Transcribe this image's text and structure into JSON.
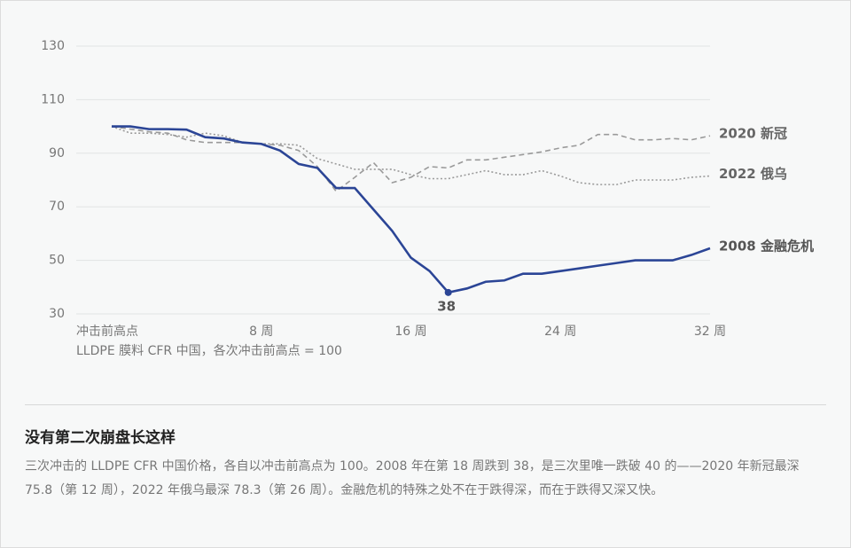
{
  "chart_data": {
    "type": "line",
    "subtitle": "LLDPE 膜料 CFR 中国，各次冲击前高点 = 100",
    "x": [
      0,
      1,
      2,
      3,
      4,
      5,
      6,
      7,
      8,
      9,
      10,
      11,
      12,
      13,
      14,
      15,
      16,
      17,
      18,
      19,
      20,
      21,
      22,
      23,
      24,
      25,
      26,
      27,
      28,
      29,
      30,
      31,
      32
    ],
    "xlim": [
      0,
      32
    ],
    "xticks": [
      {
        "value": 0,
        "label": "冲击前高点"
      },
      {
        "value": 8,
        "label": "8 周"
      },
      {
        "value": 16,
        "label": "16 周"
      },
      {
        "value": 24,
        "label": "24 周"
      },
      {
        "value": 32,
        "label": "32 周"
      }
    ],
    "ylim": [
      30,
      130
    ],
    "yticks": [
      30,
      50,
      70,
      90,
      110,
      130
    ],
    "grid": true,
    "series": [
      {
        "name": "2008 金融危机",
        "color": "#2b4596",
        "dash": "solid",
        "values": [
          100,
          100,
          99,
          99,
          98.8,
          96,
          95.5,
          94,
          93.5,
          91,
          86,
          84.5,
          77,
          77,
          69,
          61,
          51,
          46,
          38,
          39.5,
          42,
          42.5,
          45,
          45,
          46,
          47,
          48,
          49,
          50,
          50,
          50,
          52,
          54.5
        ]
      },
      {
        "name": "2020 新冠",
        "color": "#9a9a9a",
        "dash": "dashed",
        "values": [
          100,
          99,
          98,
          97.5,
          95,
          94,
          94,
          94,
          93.5,
          93,
          91,
          85,
          75.8,
          81,
          86.5,
          79,
          81,
          85,
          84.5,
          87.5,
          87.5,
          88.5,
          89.5,
          90.5,
          92,
          93,
          97,
          97,
          95,
          95,
          95.5,
          95,
          96.5
        ]
      },
      {
        "name": "2022 俄乌",
        "color": "#9a9a9a",
        "dash": "dotted",
        "values": [
          100,
          97.5,
          97.5,
          97,
          96,
          97.5,
          96.5,
          94,
          93.5,
          93.5,
          93,
          88,
          86,
          84,
          84,
          84,
          82,
          80.5,
          80.5,
          82,
          83.5,
          82,
          82,
          83.5,
          81.5,
          79,
          78.3,
          78.3,
          80,
          80,
          80,
          81,
          81.5
        ]
      }
    ],
    "highlight": {
      "series": 0,
      "index": 18
    }
  },
  "caption": {
    "title": "没有第二次崩盘长这样",
    "text": "三次冲击的 LLDPE CFR 中国价格，各自以冲击前高点为 100。2008 年在第 18 周跌到 38，是三次里唯一跌破 40 的——2020 年新冠最深 75.8（第 12 周），2022 年俄乌最深 78.3（第 26 周）。金融危机的特殊之处不在于跌得深，而在于跌得又深又快。"
  }
}
